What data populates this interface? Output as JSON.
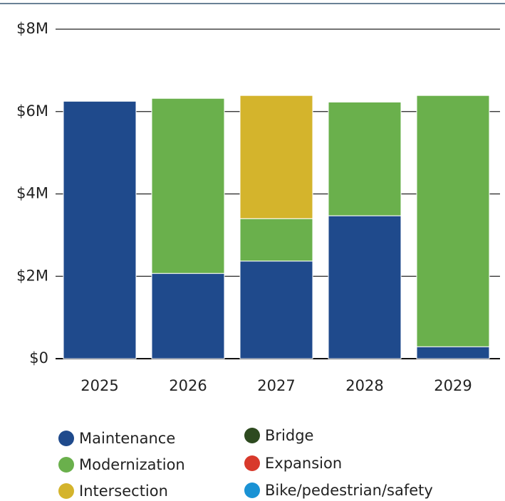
{
  "chart_data": {
    "type": "stacked_bar",
    "categories": [
      "2025",
      "2026",
      "2027",
      "2028",
      "2029"
    ],
    "series": [
      {
        "name": "Maintenance",
        "color": "#1f4a8c",
        "values": [
          6.25,
          2.07,
          2.37,
          3.47,
          0.29
        ]
      },
      {
        "name": "Modernization",
        "color": "#6ab04c",
        "values": [
          0,
          4.25,
          1.03,
          2.76,
          6.1
        ]
      },
      {
        "name": "Intersection",
        "color": "#d4b42c",
        "values": [
          0,
          0,
          2.99,
          0,
          0
        ]
      },
      {
        "name": "Bridge",
        "color": "#2d4a1f",
        "values": [
          0,
          0,
          0,
          0,
          0
        ]
      },
      {
        "name": "Expansion",
        "color": "#d8392b",
        "values": [
          0,
          0,
          0,
          0,
          0
        ]
      },
      {
        "name": "Bike/pedestrian/safety",
        "color": "#1a92d4",
        "values": [
          0,
          0,
          0,
          0,
          0
        ]
      }
    ],
    "ylim": [
      0,
      8
    ],
    "yticks": [
      {
        "value": 0,
        "label": "$0"
      },
      {
        "value": 2,
        "label": "$2M"
      },
      {
        "value": 4,
        "label": "$4M"
      },
      {
        "value": 6,
        "label": "$6M"
      },
      {
        "value": 8,
        "label": "$8M"
      }
    ],
    "grid": true
  }
}
